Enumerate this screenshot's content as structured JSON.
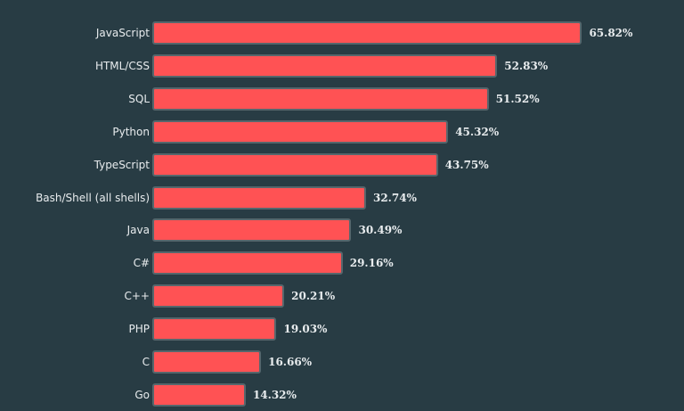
{
  "chart_data": {
    "type": "bar",
    "orientation": "horizontal",
    "title": "",
    "xlabel": "",
    "ylabel": "",
    "categories": [
      "JavaScript",
      "HTML/CSS",
      "SQL",
      "Python",
      "TypeScript",
      "Bash/Shell (all shells)",
      "Java",
      "C#",
      "C++",
      "PHP",
      "C",
      "Go"
    ],
    "values": [
      65.82,
      52.83,
      51.52,
      45.32,
      43.75,
      32.74,
      30.49,
      29.16,
      20.21,
      19.03,
      16.66,
      14.32
    ],
    "value_labels": [
      "65.82%",
      "52.83%",
      "51.52%",
      "45.32%",
      "43.75%",
      "32.74%",
      "30.49%",
      "29.16%",
      "20.21%",
      "19.03%",
      "16.66%",
      "14.32%"
    ],
    "xlim": [
      0,
      100
    ],
    "grid": false,
    "legend": null,
    "colors": {
      "bar": "#ff5254",
      "bar_border": "#56666c",
      "background": "#283c44",
      "text": "#e8ecee"
    }
  }
}
